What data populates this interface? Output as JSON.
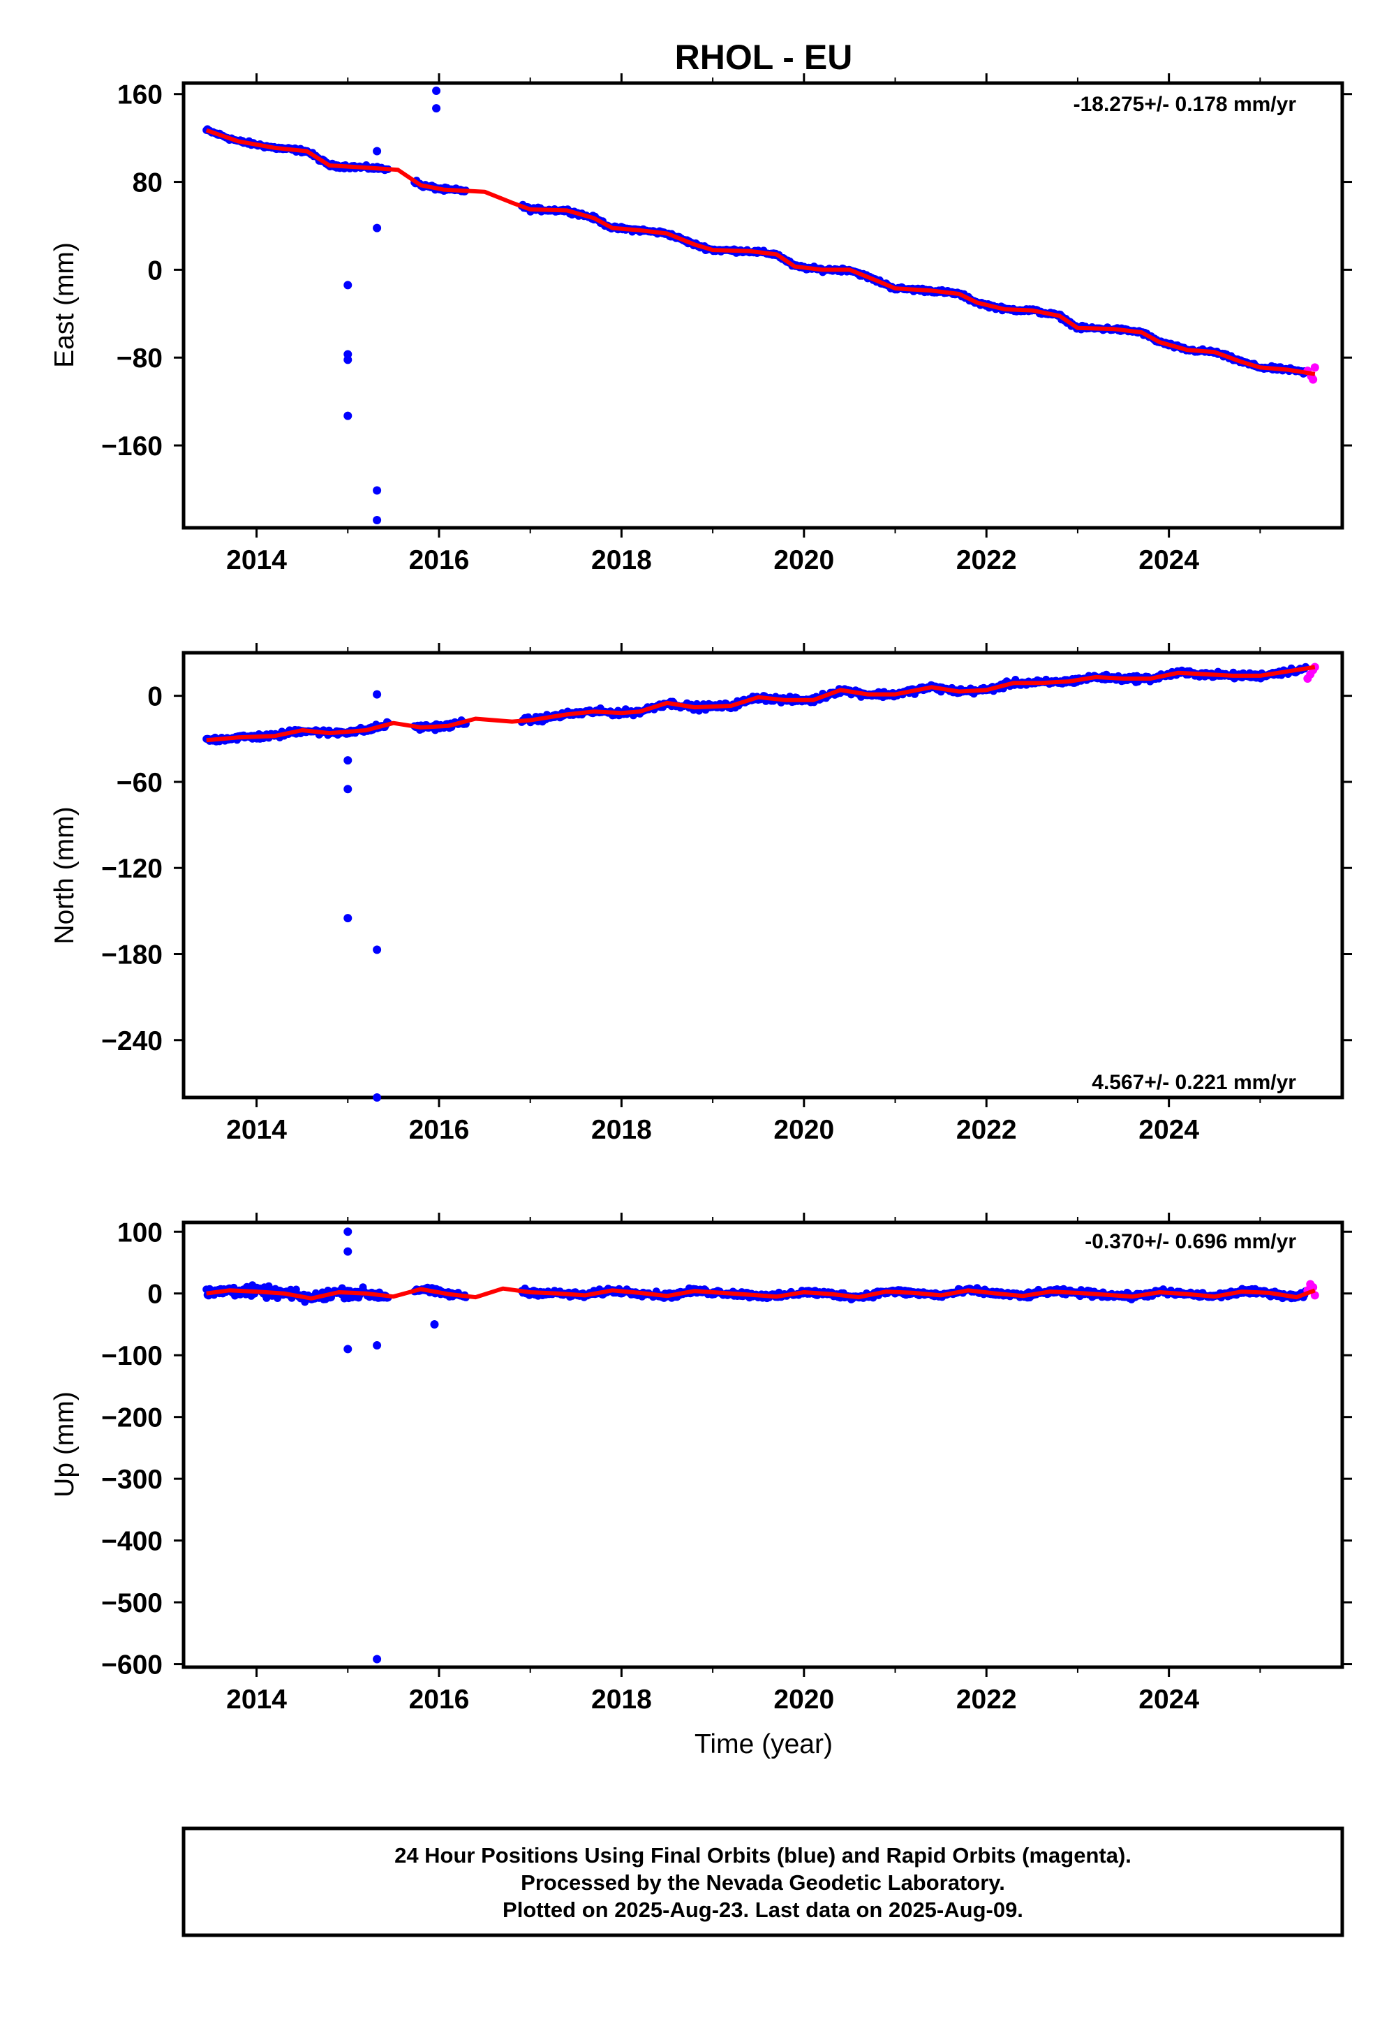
{
  "chart_data": {
    "type": "scatter",
    "title": "RHOL - EU",
    "xlabel": "Time (year)",
    "xlim": [
      2013.2,
      2025.9
    ],
    "x_ticks": [
      2014,
      2016,
      2018,
      2020,
      2022,
      2024
    ],
    "x_tick_labels": [
      "2014",
      "2016",
      "2018",
      "2020",
      "2022",
      "2024"
    ],
    "colors": {
      "final": "#0000ff",
      "rapid": "#ff00ff",
      "fit": "#ff0000"
    },
    "panels": [
      {
        "name": "East",
        "ylabel": "East (mm)",
        "ylim": [
          -235,
          170
        ],
        "y_ticks": [
          160,
          80,
          0,
          -80,
          -160
        ],
        "y_tick_labels": [
          "160",
          "80",
          "0",
          "−80",
          "−160"
        ],
        "rate_text": "-18.275+/- 0.178 mm/yr",
        "rate_position": "top-right",
        "series": [
          {
            "type": "line",
            "color": "#ff0000",
            "x": [
              2013.45,
              2013.8,
              2014.2,
              2014.55,
              2014.8,
              2015.2,
              2015.55,
              2015.8,
              2016.05,
              2016.5,
              2016.8,
              2017.0,
              2017.4,
              2017.7,
              2017.9,
              2018.2,
              2018.5,
              2018.8,
              2019.0,
              2019.4,
              2019.7,
              2019.9,
              2020.2,
              2020.5,
              2020.8,
              2021.0,
              2021.4,
              2021.7,
              2021.9,
              2022.2,
              2022.5,
              2022.8,
              2023.0,
              2023.4,
              2023.7,
              2023.9,
              2024.2,
              2024.5,
              2024.8,
              2025.0,
              2025.3,
              2025.6
            ],
            "y": [
              127,
              117,
              111,
              108,
              95,
              93,
              91,
              77,
              73,
              71,
              61,
              55,
              54,
              47,
              38,
              36,
              33,
              23,
              18,
              17,
              14,
              3,
              0,
              0,
              -10,
              -17,
              -19,
              -22,
              -30,
              -36,
              -37,
              -42,
              -53,
              -54,
              -57,
              -66,
              -73,
              -75,
              -84,
              -89,
              -91,
              -95
            ]
          },
          {
            "type": "scatter",
            "color": "#0000ff",
            "name": "outliers",
            "x": [
              2015.0,
              2015.0,
              2015.0,
              2015.0,
              2015.32,
              2015.32,
              2015.32,
              2015.32,
              2015.97,
              2015.97
            ],
            "y": [
              -14,
              -77,
              -82,
              -133,
              -201,
              -228,
              38,
              108,
              163,
              147
            ]
          },
          {
            "type": "scatter",
            "color": "#ff00ff",
            "name": "rapid",
            "x": [
              2025.52,
              2025.56,
              2025.58,
              2025.6
            ],
            "y": [
              -92,
              -97,
              -100,
              -89
            ]
          }
        ]
      },
      {
        "name": "North",
        "ylabel": "North (mm)",
        "ylim": [
          -280,
          30
        ],
        "y_ticks": [
          0,
          -60,
          -120,
          -180,
          -240
        ],
        "y_tick_labels": [
          "0",
          "−60",
          "−120",
          "−180",
          "−240"
        ],
        "rate_text": "4.567+/- 0.221 mm/yr",
        "rate_position": "bottom-right",
        "series": [
          {
            "type": "line",
            "color": "#ff0000",
            "x": [
              2013.45,
              2013.8,
              2014.2,
              2014.5,
              2014.8,
              2015.2,
              2015.5,
              2015.8,
              2016.1,
              2016.4,
              2016.8,
              2017.0,
              2017.4,
              2017.7,
              2018.0,
              2018.2,
              2018.5,
              2018.8,
              2019.2,
              2019.5,
              2019.8,
              2020.1,
              2020.4,
              2020.7,
              2021.0,
              2021.4,
              2021.7,
              2022.0,
              2022.3,
              2022.6,
              2022.9,
              2023.2,
              2023.5,
              2023.8,
              2024.1,
              2024.4,
              2024.7,
              2025.0,
              2025.3,
              2025.6
            ],
            "y": [
              -31,
              -29,
              -28,
              -24,
              -26,
              -24,
              -19,
              -22,
              -21,
              -16,
              -18,
              -17,
              -13,
              -11,
              -12,
              -11,
              -5,
              -8,
              -7,
              -1,
              -3,
              -3,
              4,
              1,
              1,
              6,
              3,
              4,
              9,
              9,
              10,
              13,
              12,
              12,
              16,
              15,
              14,
              14,
              17,
              20
            ]
          },
          {
            "type": "scatter",
            "color": "#0000ff",
            "name": "outliers",
            "x": [
              2015.0,
              2015.0,
              2015.0,
              2015.32,
              2015.32,
              2015.32
            ],
            "y": [
              -45,
              -65,
              -155,
              -177,
              -280,
              1
            ]
          },
          {
            "type": "scatter",
            "color": "#ff00ff",
            "name": "rapid",
            "x": [
              2025.52,
              2025.55,
              2025.58,
              2025.6
            ],
            "y": [
              12,
              15,
              18,
              20
            ]
          }
        ]
      },
      {
        "name": "Up",
        "ylabel": "Up (mm)",
        "ylim": [
          -605,
          115
        ],
        "y_ticks": [
          100,
          0,
          -100,
          -200,
          -300,
          -400,
          -500,
          -600
        ],
        "y_tick_labels": [
          "100",
          "0",
          "−100",
          "−200",
          "−300",
          "−400",
          "−500",
          "−600"
        ],
        "rate_text": "-0.370+/- 0.696 mm/yr",
        "rate_position": "top-right",
        "series": [
          {
            "type": "line",
            "color": "#ff0000",
            "x": [
              2013.45,
              2013.7,
              2014.0,
              2014.3,
              2014.6,
              2014.9,
              2015.2,
              2015.5,
              2015.8,
              2016.1,
              2016.4,
              2016.7,
              2017.0,
              2017.3,
              2017.6,
              2017.9,
              2018.2,
              2018.5,
              2018.8,
              2019.1,
              2019.4,
              2019.7,
              2020.0,
              2020.3,
              2020.6,
              2020.9,
              2021.2,
              2021.5,
              2021.8,
              2022.1,
              2022.4,
              2022.7,
              2023.0,
              2023.3,
              2023.6,
              2023.9,
              2024.2,
              2024.5,
              2024.8,
              2025.1,
              2025.4,
              2025.6
            ],
            "y": [
              0,
              5,
              3,
              0,
              -8,
              2,
              0,
              -5,
              7,
              -1,
              -6,
              8,
              2,
              0,
              -3,
              5,
              1,
              -4,
              4,
              1,
              -2,
              -5,
              2,
              -1,
              -6,
              3,
              1,
              -3,
              5,
              0,
              -4,
              3,
              1,
              -2,
              -5,
              2,
              -1,
              -5,
              3,
              1,
              -6,
              5
            ]
          },
          {
            "type": "scatter",
            "color": "#0000ff",
            "name": "outliers",
            "x": [
              2015.0,
              2015.0,
              2015.0,
              2015.32,
              2015.32,
              2015.95
            ],
            "y": [
              100,
              68,
              -90,
              -84,
              -592,
              -50
            ]
          },
          {
            "type": "scatter",
            "color": "#ff00ff",
            "name": "rapid",
            "x": [
              2025.52,
              2025.55,
              2025.58,
              2025.6
            ],
            "y": [
              5,
              15,
              10,
              -3
            ]
          }
        ]
      }
    ]
  },
  "footer": {
    "line1": "24 Hour Positions Using Final Orbits (blue) and Rapid Orbits (magenta).",
    "line2": "Processed by the Nevada Geodetic Laboratory.",
    "line3": "Plotted on 2025-Aug-23. Last data on 2025-Aug-09."
  }
}
